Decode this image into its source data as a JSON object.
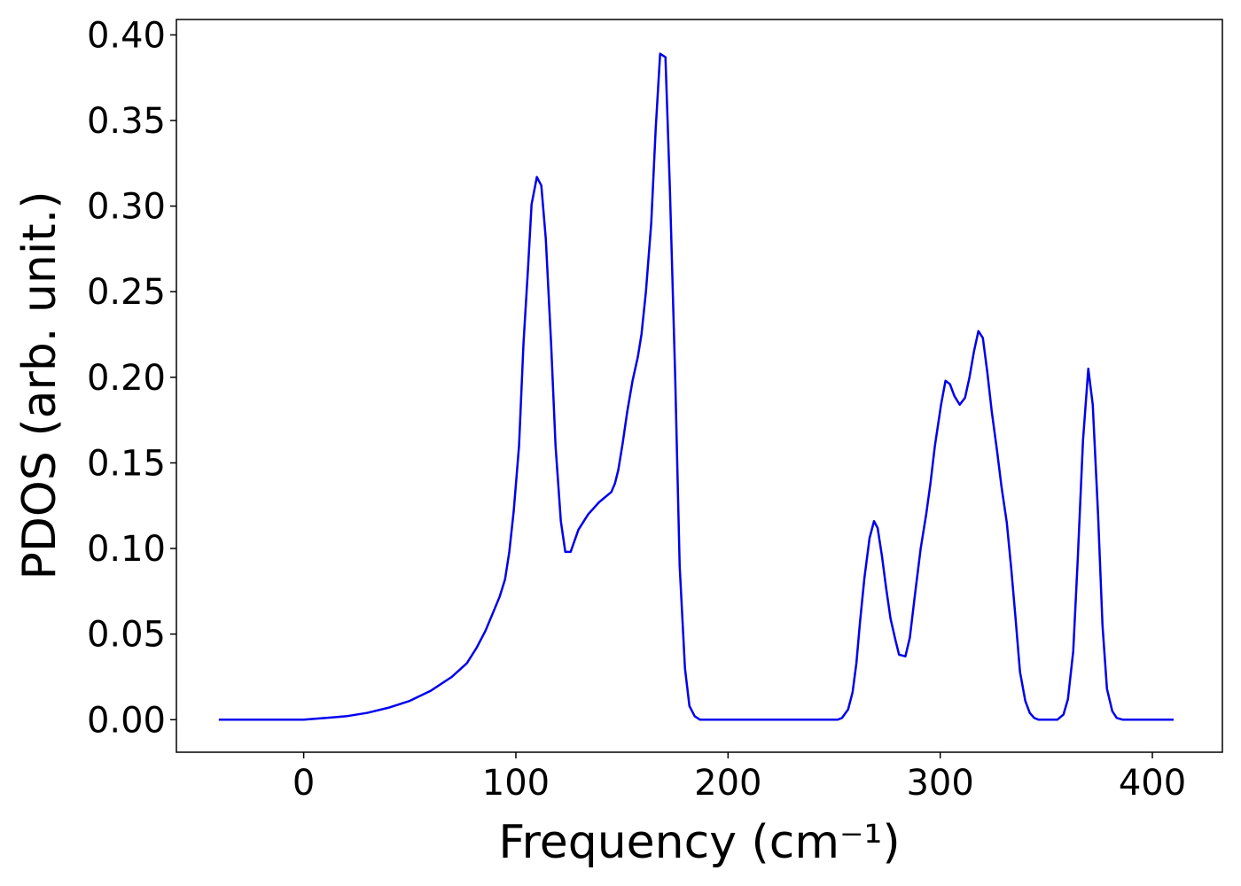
{
  "chart_data": {
    "type": "line",
    "xlabel": "Frequency (cm⁻¹)",
    "ylabel": "PDOS (arb. unit.)",
    "xlim": [
      -60,
      433
    ],
    "ylim": [
      -0.019,
      0.409
    ],
    "xticks": [
      0,
      100,
      200,
      300,
      400
    ],
    "yticks": [
      {
        "value": 0,
        "label": "0.00"
      },
      {
        "value": 0.05,
        "label": "0.05"
      },
      {
        "value": 0.1,
        "label": "0.10"
      },
      {
        "value": 0.15,
        "label": "0.15"
      },
      {
        "value": 0.2,
        "label": "0.20"
      },
      {
        "value": 0.25,
        "label": "0.25"
      },
      {
        "value": 0.3,
        "label": "0.30"
      },
      {
        "value": 0.35,
        "label": "0.35"
      },
      {
        "value": 0.4,
        "label": "0.40"
      }
    ],
    "grid": false,
    "series": [
      {
        "color": "#0000ee",
        "x": [
          -40,
          -20,
          0,
          10,
          20,
          30,
          40,
          50,
          60,
          69.8,
          76.9,
          81.5,
          85.7,
          89.4,
          92.4,
          94.9,
          96.9,
          99,
          101.5,
          103.6,
          105.7,
          107.4,
          109.9,
          112,
          114.1,
          116.6,
          118.7,
          121.2,
          123.3,
          125.8,
          129.5,
          134.1,
          139.2,
          145,
          146.7,
          148.3,
          150.4,
          152.5,
          155,
          157.5,
          159.2,
          161.3,
          163.8,
          165.9,
          168,
          170.5,
          172.6,
          175.1,
          177.2,
          179.7,
          181.8,
          184.3,
          186.8,
          220,
          251.6,
          253.7,
          256.6,
          258.7,
          260.5,
          262.2,
          264.3,
          266.7,
          268.8,
          270.5,
          272.5,
          274.5,
          276.6,
          279,
          280.6,
          283.6,
          285.7,
          288,
          290.8,
          293.4,
          295.4,
          297.5,
          300.4,
          302.5,
          304.6,
          306.7,
          309.2,
          311.7,
          313.8,
          315.9,
          318,
          320.1,
          322.2,
          324.3,
          326.8,
          328.9,
          331.4,
          333.5,
          335.6,
          337.6,
          340.1,
          342.2,
          344.3,
          346.4,
          355.2,
          358.1,
          360.2,
          362.7,
          364.8,
          367.3,
          369.8,
          371.9,
          374.4,
          376.5,
          378.6,
          381.1,
          383.2,
          386.1,
          410
        ],
        "values": [
          0,
          0,
          0,
          0.001,
          0.002,
          0.004,
          0.007,
          0.011,
          0.017,
          0.025,
          0.033,
          0.042,
          0.052,
          0.063,
          0.072,
          0.082,
          0.098,
          0.122,
          0.16,
          0.22,
          0.263,
          0.301,
          0.317,
          0.312,
          0.281,
          0.22,
          0.16,
          0.116,
          0.098,
          0.098,
          0.111,
          0.12,
          0.127,
          0.133,
          0.138,
          0.146,
          0.162,
          0.18,
          0.198,
          0.212,
          0.225,
          0.25,
          0.29,
          0.345,
          0.389,
          0.387,
          0.31,
          0.2,
          0.09,
          0.03,
          0.008,
          0.002,
          0,
          0,
          0,
          0.001,
          0.006,
          0.016,
          0.033,
          0.057,
          0.083,
          0.106,
          0.116,
          0.112,
          0.096,
          0.077,
          0.059,
          0.046,
          0.038,
          0.037,
          0.048,
          0.072,
          0.1,
          0.12,
          0.138,
          0.16,
          0.184,
          0.198,
          0.196,
          0.189,
          0.184,
          0.188,
          0.2,
          0.215,
          0.227,
          0.223,
          0.203,
          0.18,
          0.157,
          0.136,
          0.115,
          0.088,
          0.058,
          0.028,
          0.011,
          0.004,
          0.001,
          0,
          0,
          0.003,
          0.012,
          0.04,
          0.093,
          0.163,
          0.205,
          0.184,
          0.12,
          0.055,
          0.018,
          0.005,
          0.001,
          0,
          0
        ]
      }
    ]
  }
}
